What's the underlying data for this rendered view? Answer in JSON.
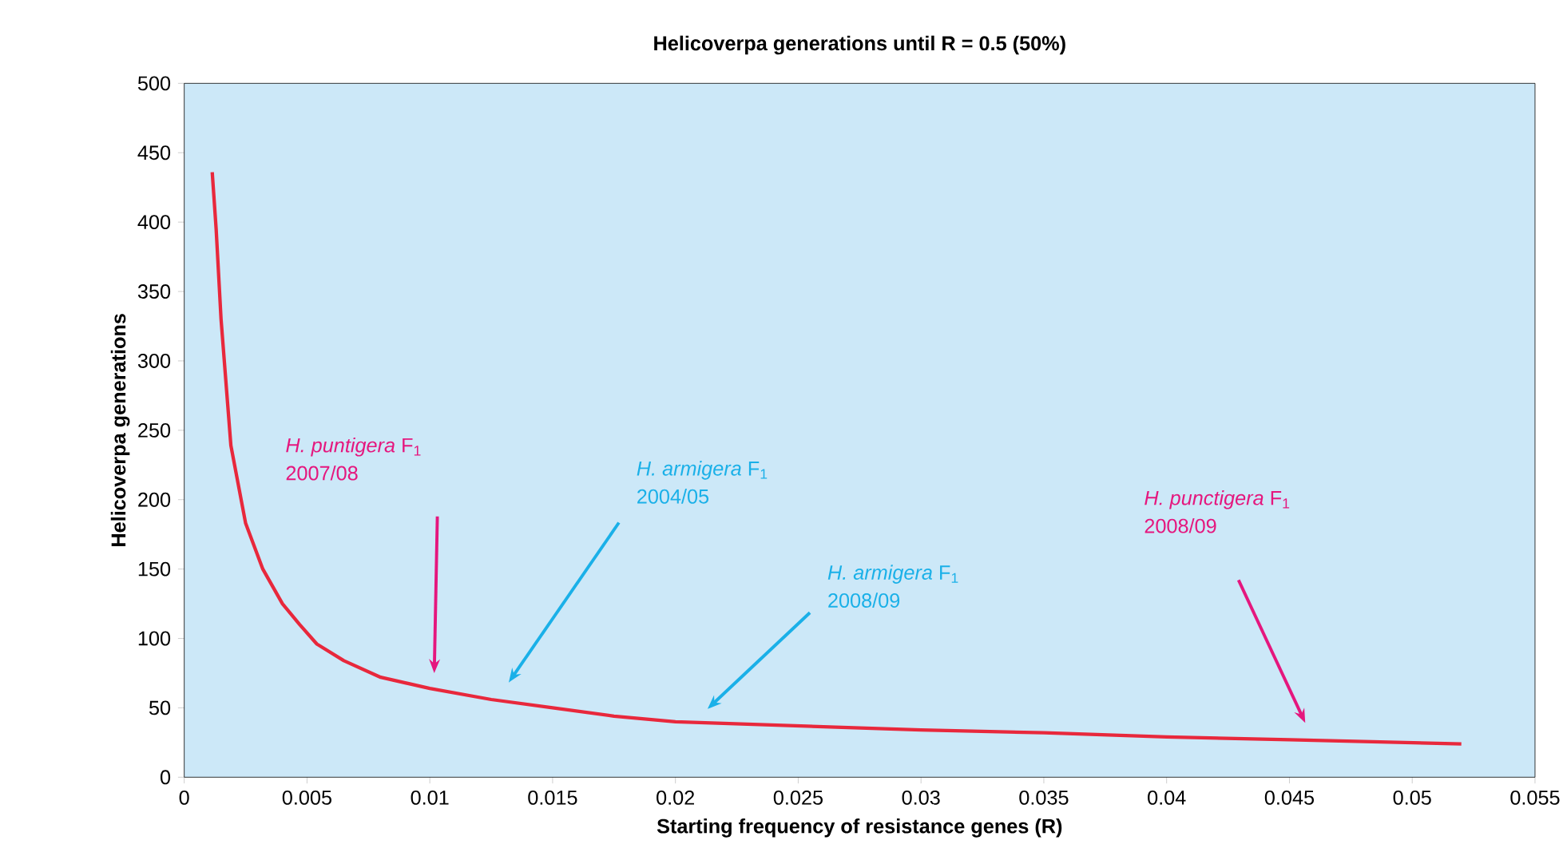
{
  "chart_data": {
    "type": "line",
    "title": "Helicoverpa generations until R = 0.5 (50%)",
    "xlabel": "Starting frequency of resistance genes (R)",
    "ylabel": "Helicoverpa generations",
    "x": [
      0.00114,
      0.0013,
      0.0015,
      0.0019,
      0.0025,
      0.0032,
      0.004,
      0.0047,
      0.0054,
      0.0065,
      0.008,
      0.01,
      0.0125,
      0.015,
      0.0175,
      0.02,
      0.025,
      0.03,
      0.035,
      0.04,
      0.045,
      0.052
    ],
    "series": [
      {
        "color": "#e8283c",
        "values": [
          436,
          395,
          330,
          239,
          183,
          150,
          125,
          110,
          96,
          84,
          72,
          64,
          56,
          50,
          44,
          40,
          37,
          34,
          32,
          29,
          27,
          24
        ]
      }
    ],
    "xlim": [
      0,
      0.055
    ],
    "ylim": [
      0,
      500
    ],
    "xticks": [
      0,
      0.005,
      0.01,
      0.015,
      0.02,
      0.025,
      0.03,
      0.035,
      0.04,
      0.045,
      0.05,
      0.055
    ],
    "yticks": [
      0,
      50,
      100,
      150,
      200,
      250,
      300,
      350,
      400,
      450,
      500
    ],
    "grid": false,
    "marker": "none",
    "line_style": "solid",
    "annotations": [
      "*H. puntigera* F$_{1}$",
      "2007/08",
      "*H. armigera* F$_{1}$",
      "2004/05",
      "*H. armigera* F$_{1}$",
      "2008/09",
      "*H. punctigera* F$_{1}$",
      "2008/09"
    ]
  }
}
